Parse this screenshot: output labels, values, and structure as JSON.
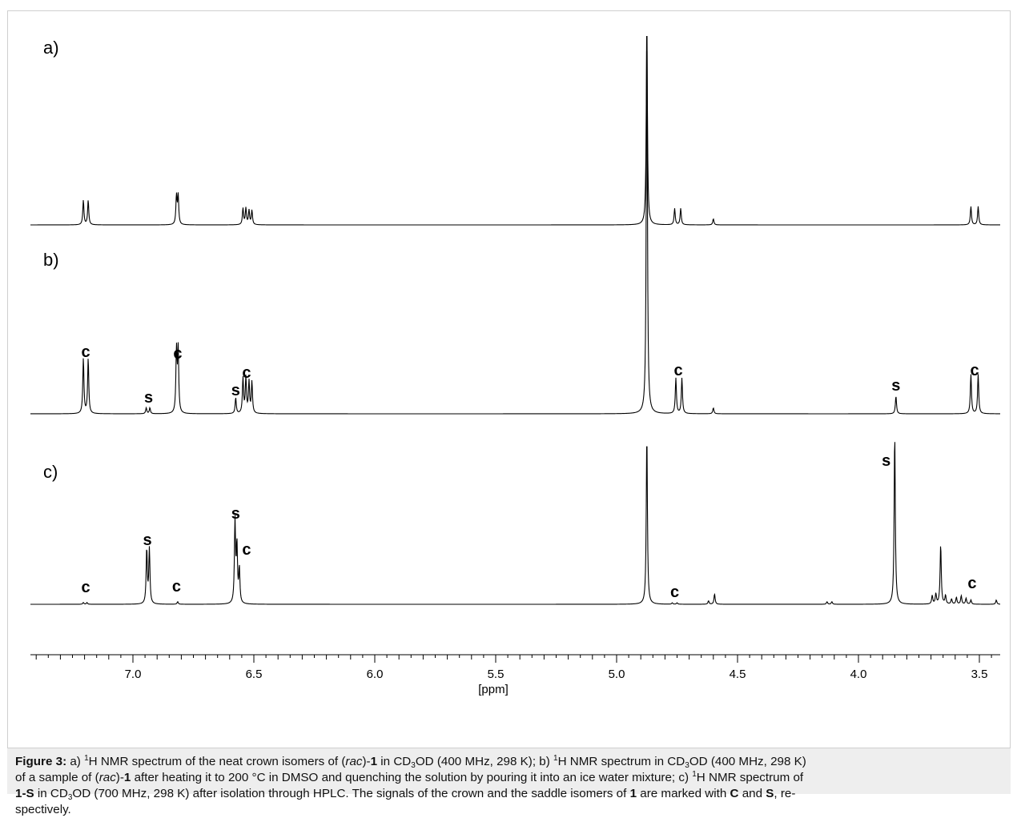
{
  "chart_data": {
    "type": "line",
    "xlabel": "[ppm]",
    "ylabel": "",
    "xlim": [
      7.4,
      3.4
    ],
    "x_reversed": true,
    "xticks": [
      "7.0",
      "6.5",
      "6.0",
      "5.5",
      "5.0",
      "4.5",
      "4.0",
      "3.5"
    ],
    "xtick_values": [
      7.0,
      6.5,
      6.0,
      5.5,
      5.0,
      4.5,
      4.0,
      3.5
    ],
    "grid": false,
    "panels": [
      {
        "label": "a)",
        "peaks": [
          {
            "ppm": 7.205,
            "height": 0.12
          },
          {
            "ppm": 7.185,
            "height": 0.12
          },
          {
            "ppm": 6.82,
            "height": 0.14
          },
          {
            "ppm": 6.813,
            "height": 0.14
          },
          {
            "ppm": 6.545,
            "height": 0.08
          },
          {
            "ppm": 6.533,
            "height": 0.08
          },
          {
            "ppm": 6.52,
            "height": 0.07
          },
          {
            "ppm": 6.508,
            "height": 0.07
          },
          {
            "ppm": 4.875,
            "height": 1.0
          },
          {
            "ppm": 4.76,
            "height": 0.08
          },
          {
            "ppm": 4.735,
            "height": 0.08
          },
          {
            "ppm": 4.6,
            "height": 0.03
          },
          {
            "ppm": 3.535,
            "height": 0.09
          },
          {
            "ppm": 3.505,
            "height": 0.09
          }
        ],
        "annotations": []
      },
      {
        "label": "b)",
        "peaks": [
          {
            "ppm": 7.205,
            "height": 0.14
          },
          {
            "ppm": 7.185,
            "height": 0.14
          },
          {
            "ppm": 6.945,
            "height": 0.015
          },
          {
            "ppm": 6.93,
            "height": 0.015
          },
          {
            "ppm": 6.82,
            "height": 0.16
          },
          {
            "ppm": 6.813,
            "height": 0.16
          },
          {
            "ppm": 6.575,
            "height": 0.04
          },
          {
            "ppm": 6.545,
            "height": 0.09
          },
          {
            "ppm": 6.533,
            "height": 0.09
          },
          {
            "ppm": 6.52,
            "height": 0.08
          },
          {
            "ppm": 6.508,
            "height": 0.08
          },
          {
            "ppm": 4.875,
            "height": 1.0
          },
          {
            "ppm": 4.755,
            "height": 0.09
          },
          {
            "ppm": 4.73,
            "height": 0.09
          },
          {
            "ppm": 4.6,
            "height": 0.015
          },
          {
            "ppm": 3.845,
            "height": 0.045
          },
          {
            "ppm": 3.535,
            "height": 0.1
          },
          {
            "ppm": 3.505,
            "height": 0.1
          }
        ],
        "annotations": [
          {
            "text": "c",
            "ppm": 7.195
          },
          {
            "text": "s",
            "ppm": 6.935
          },
          {
            "text": "c",
            "ppm": 6.815
          },
          {
            "text": "s",
            "ppm": 6.575
          },
          {
            "text": "c",
            "ppm": 6.53
          },
          {
            "text": "c",
            "ppm": 4.745
          },
          {
            "text": "s",
            "ppm": 3.845
          },
          {
            "text": "c",
            "ppm": 3.52
          }
        ]
      },
      {
        "label": "c)",
        "peaks": [
          {
            "ppm": 7.205,
            "height": 0.01
          },
          {
            "ppm": 7.19,
            "height": 0.01
          },
          {
            "ppm": 6.943,
            "height": 0.32
          },
          {
            "ppm": 6.932,
            "height": 0.32
          },
          {
            "ppm": 6.815,
            "height": 0.015
          },
          {
            "ppm": 6.578,
            "height": 0.48
          },
          {
            "ppm": 6.57,
            "height": 0.33
          },
          {
            "ppm": 6.56,
            "height": 0.2
          },
          {
            "ppm": 4.875,
            "height": 1.0
          },
          {
            "ppm": 4.77,
            "height": 0.008
          },
          {
            "ppm": 4.75,
            "height": 0.008
          },
          {
            "ppm": 4.62,
            "height": 0.02
          },
          {
            "ppm": 4.595,
            "height": 0.06
          },
          {
            "ppm": 4.13,
            "height": 0.015
          },
          {
            "ppm": 4.11,
            "height": 0.015
          },
          {
            "ppm": 3.85,
            "height": 1.0
          },
          {
            "ppm": 3.66,
            "height": 0.35
          },
          {
            "ppm": 3.695,
            "height": 0.05
          },
          {
            "ppm": 3.68,
            "height": 0.06
          },
          {
            "ppm": 3.64,
            "height": 0.05
          },
          {
            "ppm": 3.615,
            "height": 0.03
          },
          {
            "ppm": 3.595,
            "height": 0.04
          },
          {
            "ppm": 3.575,
            "height": 0.05
          },
          {
            "ppm": 3.555,
            "height": 0.035
          },
          {
            "ppm": 3.535,
            "height": 0.025
          },
          {
            "ppm": 3.43,
            "height": 0.025
          }
        ],
        "annotations": [
          {
            "text": "c",
            "ppm": 7.195
          },
          {
            "text": "s",
            "ppm": 6.94
          },
          {
            "text": "c",
            "ppm": 6.82
          },
          {
            "text": "s",
            "ppm": 6.575
          },
          {
            "text": "c",
            "ppm": 6.53
          },
          {
            "text": "c",
            "ppm": 4.76
          },
          {
            "text": "s",
            "ppm": 3.885
          },
          {
            "text": "c",
            "ppm": 3.53
          }
        ]
      }
    ]
  },
  "caption": {
    "figure_label": "Figure 3:",
    "lines": [
      [
        {
          "t": " a) "
        },
        {
          "t": "1",
          "f": "sup"
        },
        {
          "t": "H NMR spectrum of the neat crown isomers of ("
        },
        {
          "t": "rac",
          "f": "i"
        },
        {
          "t": ")-"
        },
        {
          "t": "1",
          "f": "b"
        },
        {
          "t": " in CD"
        },
        {
          "t": "3",
          "f": "sub"
        },
        {
          "t": "OD (400 MHz, 298 K); b) "
        },
        {
          "t": "1",
          "f": "sup"
        },
        {
          "t": "H NMR spectrum in CD"
        },
        {
          "t": "3",
          "f": "sub"
        },
        {
          "t": "OD (400 MHz, 298 K)"
        }
      ],
      [
        {
          "t": "of a sample of ("
        },
        {
          "t": "rac",
          "f": "i"
        },
        {
          "t": ")-"
        },
        {
          "t": "1",
          "f": "b"
        },
        {
          "t": " after heating it to 200 °C in DMSO and quenching the solution by pouring it into an ice water mixture; c) "
        },
        {
          "t": "1",
          "f": "sup"
        },
        {
          "t": "H NMR spectrum of"
        }
      ],
      [
        {
          "t": "1-S",
          "f": "b"
        },
        {
          "t": " in CD"
        },
        {
          "t": "3",
          "f": "sub"
        },
        {
          "t": "OD (700 MHz, 298 K) after isolation through HPLC. The signals of the crown and the saddle isomers of "
        },
        {
          "t": "1",
          "f": "b"
        },
        {
          "t": " are marked with "
        },
        {
          "t": "C",
          "f": "b"
        },
        {
          "t": " and "
        },
        {
          "t": "S",
          "f": "b"
        },
        {
          "t": ", re-"
        }
      ],
      [
        {
          "t": "spectively."
        }
      ]
    ]
  }
}
